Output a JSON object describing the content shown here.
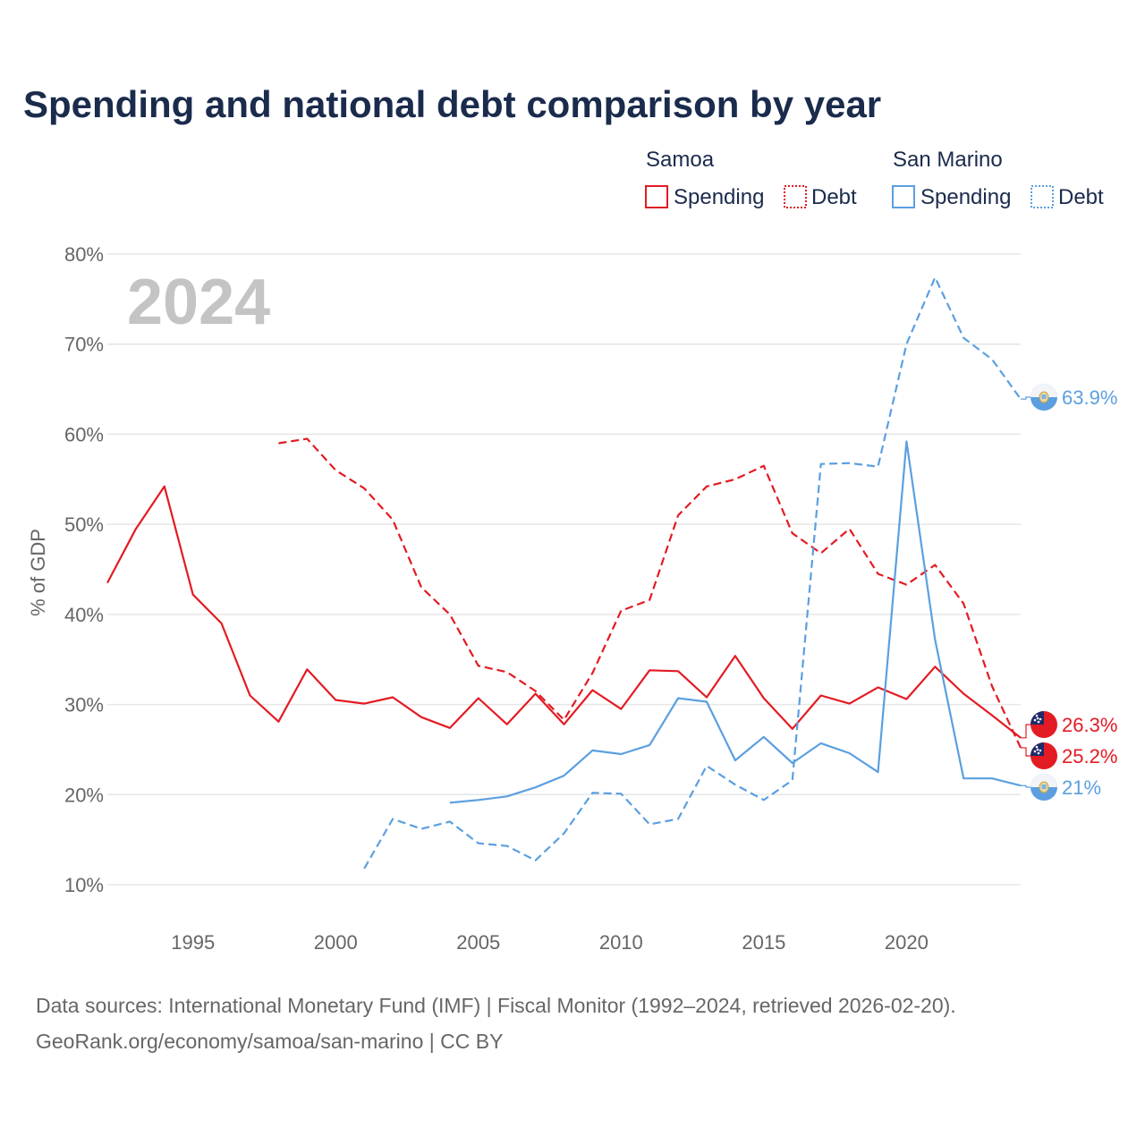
{
  "title": "Spending and national debt comparison by year",
  "year_watermark": "2024",
  "legend": {
    "groups": [
      {
        "name": "Samoa",
        "color": "#e31b23",
        "items": [
          {
            "label": "Spending",
            "style": "solid"
          },
          {
            "label": "Debt",
            "style": "dotted"
          }
        ]
      },
      {
        "name": "San Marino",
        "color": "#5b9fe0",
        "items": [
          {
            "label": "Spending",
            "style": "solid"
          },
          {
            "label": "Debt",
            "style": "dotted"
          }
        ]
      }
    ]
  },
  "source": {
    "line1": "Data sources: International Monetary Fund (IMF) | Fiscal Monitor (1992–2024, retrieved 2026-02-20).",
    "line2": "GeoRank.org/economy/samoa/san-marino | CC BY"
  },
  "end_labels": [
    {
      "text": "63.9%",
      "color": "#5b9fe0",
      "flag": "san-marino"
    },
    {
      "text": "26.3%",
      "color": "#e31b23",
      "flag": "samoa"
    },
    {
      "text": "25.2%",
      "color": "#e31b23",
      "flag": "samoa"
    },
    {
      "text": "21%",
      "color": "#5b9fe0",
      "flag": "san-marino"
    }
  ],
  "chart_data": {
    "type": "line",
    "title": "Spending and national debt comparison by year",
    "xlabel": "",
    "ylabel": "% of GDP",
    "xlim": [
      1992,
      2024
    ],
    "ylim": [
      10,
      80
    ],
    "grid": true,
    "legend_position": "top-right",
    "x_ticks": [
      1995,
      2000,
      2005,
      2010,
      2015,
      2020
    ],
    "y_ticks": [
      {
        "value": 10,
        "label": "10%"
      },
      {
        "value": 20,
        "label": "20%"
      },
      {
        "value": 30,
        "label": "30%"
      },
      {
        "value": 40,
        "label": "40%"
      },
      {
        "value": 50,
        "label": "50%"
      },
      {
        "value": 60,
        "label": "60%"
      },
      {
        "value": 70,
        "label": "70%"
      },
      {
        "value": 80,
        "label": "80%"
      }
    ],
    "series": [
      {
        "name": "Samoa Spending",
        "country": "Samoa",
        "metric": "Spending",
        "color": "#e31b23",
        "dash": "solid",
        "x": [
          1992,
          1993,
          1994,
          1995,
          1996,
          1997,
          1998,
          1999,
          2000,
          2001,
          2002,
          2003,
          2004,
          2005,
          2006,
          2007,
          2008,
          2009,
          2010,
          2011,
          2012,
          2013,
          2014,
          2015,
          2016,
          2017,
          2018,
          2019,
          2020,
          2021,
          2022,
          2023,
          2024
        ],
        "values": [
          43.5,
          49.5,
          54.2,
          42.2,
          39.0,
          31.0,
          28.1,
          33.9,
          30.5,
          30.1,
          30.8,
          28.6,
          27.4,
          30.7,
          27.8,
          31.2,
          27.8,
          31.6,
          29.5,
          33.8,
          33.7,
          30.8,
          35.4,
          30.7,
          27.3,
          31.0,
          30.1,
          31.9,
          30.6,
          34.2,
          31.2,
          28.8,
          26.3
        ]
      },
      {
        "name": "Samoa Debt",
        "country": "Samoa",
        "metric": "Debt",
        "color": "#e31b23",
        "dash": "dashed",
        "x": [
          1998,
          1999,
          2000,
          2001,
          2002,
          2003,
          2004,
          2005,
          2006,
          2007,
          2008,
          2009,
          2010,
          2011,
          2012,
          2013,
          2014,
          2015,
          2016,
          2017,
          2018,
          2019,
          2020,
          2021,
          2022,
          2023,
          2024
        ],
        "values": [
          59.0,
          59.5,
          56.0,
          54.0,
          50.5,
          43.0,
          40.0,
          34.3,
          33.6,
          31.5,
          28.3,
          33.5,
          40.4,
          41.6,
          51.0,
          54.2,
          55.0,
          56.5,
          49.0,
          46.8,
          49.5,
          44.5,
          43.3,
          45.5,
          41.2,
          32.0,
          25.2
        ]
      },
      {
        "name": "San Marino Spending",
        "country": "San Marino",
        "metric": "Spending",
        "color": "#5b9fe0",
        "dash": "solid",
        "x": [
          2004,
          2005,
          2006,
          2007,
          2008,
          2009,
          2010,
          2011,
          2012,
          2013,
          2014,
          2015,
          2016,
          2017,
          2018,
          2019,
          2020,
          2021,
          2022,
          2023,
          2024
        ],
        "values": [
          19.1,
          19.4,
          19.8,
          20.8,
          22.1,
          24.9,
          24.5,
          25.5,
          30.7,
          30.3,
          23.8,
          26.4,
          23.5,
          25.7,
          24.6,
          22.5,
          59.2,
          37.2,
          21.8,
          21.8,
          21.0
        ]
      },
      {
        "name": "San Marino Debt",
        "country": "San Marino",
        "metric": "Debt",
        "color": "#5b9fe0",
        "dash": "dashed",
        "x": [
          2001,
          2002,
          2003,
          2004,
          2005,
          2006,
          2007,
          2008,
          2009,
          2010,
          2011,
          2012,
          2013,
          2014,
          2015,
          2016,
          2017,
          2018,
          2019,
          2020,
          2021,
          2022,
          2023,
          2024
        ],
        "values": [
          11.8,
          17.3,
          16.2,
          17.0,
          14.6,
          14.3,
          12.7,
          15.7,
          20.2,
          20.1,
          16.7,
          17.3,
          23.2,
          21.1,
          19.4,
          21.6,
          56.7,
          56.8,
          56.4,
          70.0,
          77.4,
          70.7,
          68.3,
          63.9
        ]
      }
    ]
  }
}
